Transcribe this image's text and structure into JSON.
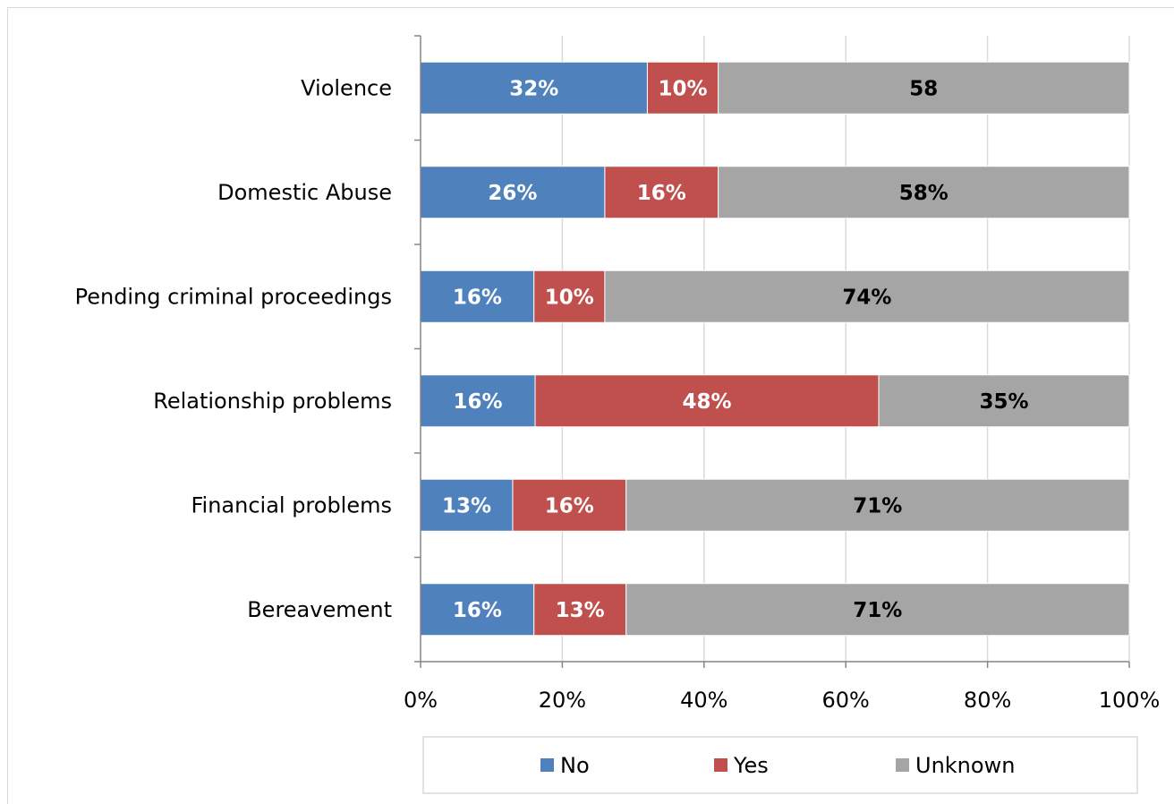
{
  "chart_data": {
    "type": "bar",
    "orientation": "horizontal",
    "stacked": "percent",
    "categories": [
      "Violence",
      "Domestic Abuse",
      "Pending criminal proceedings",
      "Relationship problems",
      "Financial problems",
      "Bereavement"
    ],
    "series": [
      {
        "name": "No",
        "color": "#4f81bd",
        "label_color": "#ffffff",
        "values": [
          32,
          26,
          16,
          16,
          13,
          16
        ],
        "labels": [
          "32%",
          "26%",
          "16%",
          "16%",
          "13%",
          "16%"
        ]
      },
      {
        "name": "Yes",
        "color": "#c0504d",
        "label_color": "#ffffff",
        "values": [
          10,
          16,
          10,
          48,
          16,
          13
        ],
        "labels": [
          "10%",
          "16%",
          "10%",
          "48%",
          "16%",
          "13%"
        ]
      },
      {
        "name": "Unknown",
        "color": "#a5a5a5",
        "label_color": "#000000",
        "values": [
          58,
          58,
          74,
          35,
          71,
          71
        ],
        "labels": [
          "58",
          "58%",
          "74%",
          "35%",
          "71%",
          "71%"
        ]
      }
    ],
    "x_ticks": [
      "0%",
      "20%",
      "40%",
      "60%",
      "80%",
      "100%"
    ],
    "xlim": [
      0,
      100
    ],
    "grid": true,
    "legend": "bottom",
    "title": "",
    "xlabel": "",
    "ylabel": ""
  }
}
